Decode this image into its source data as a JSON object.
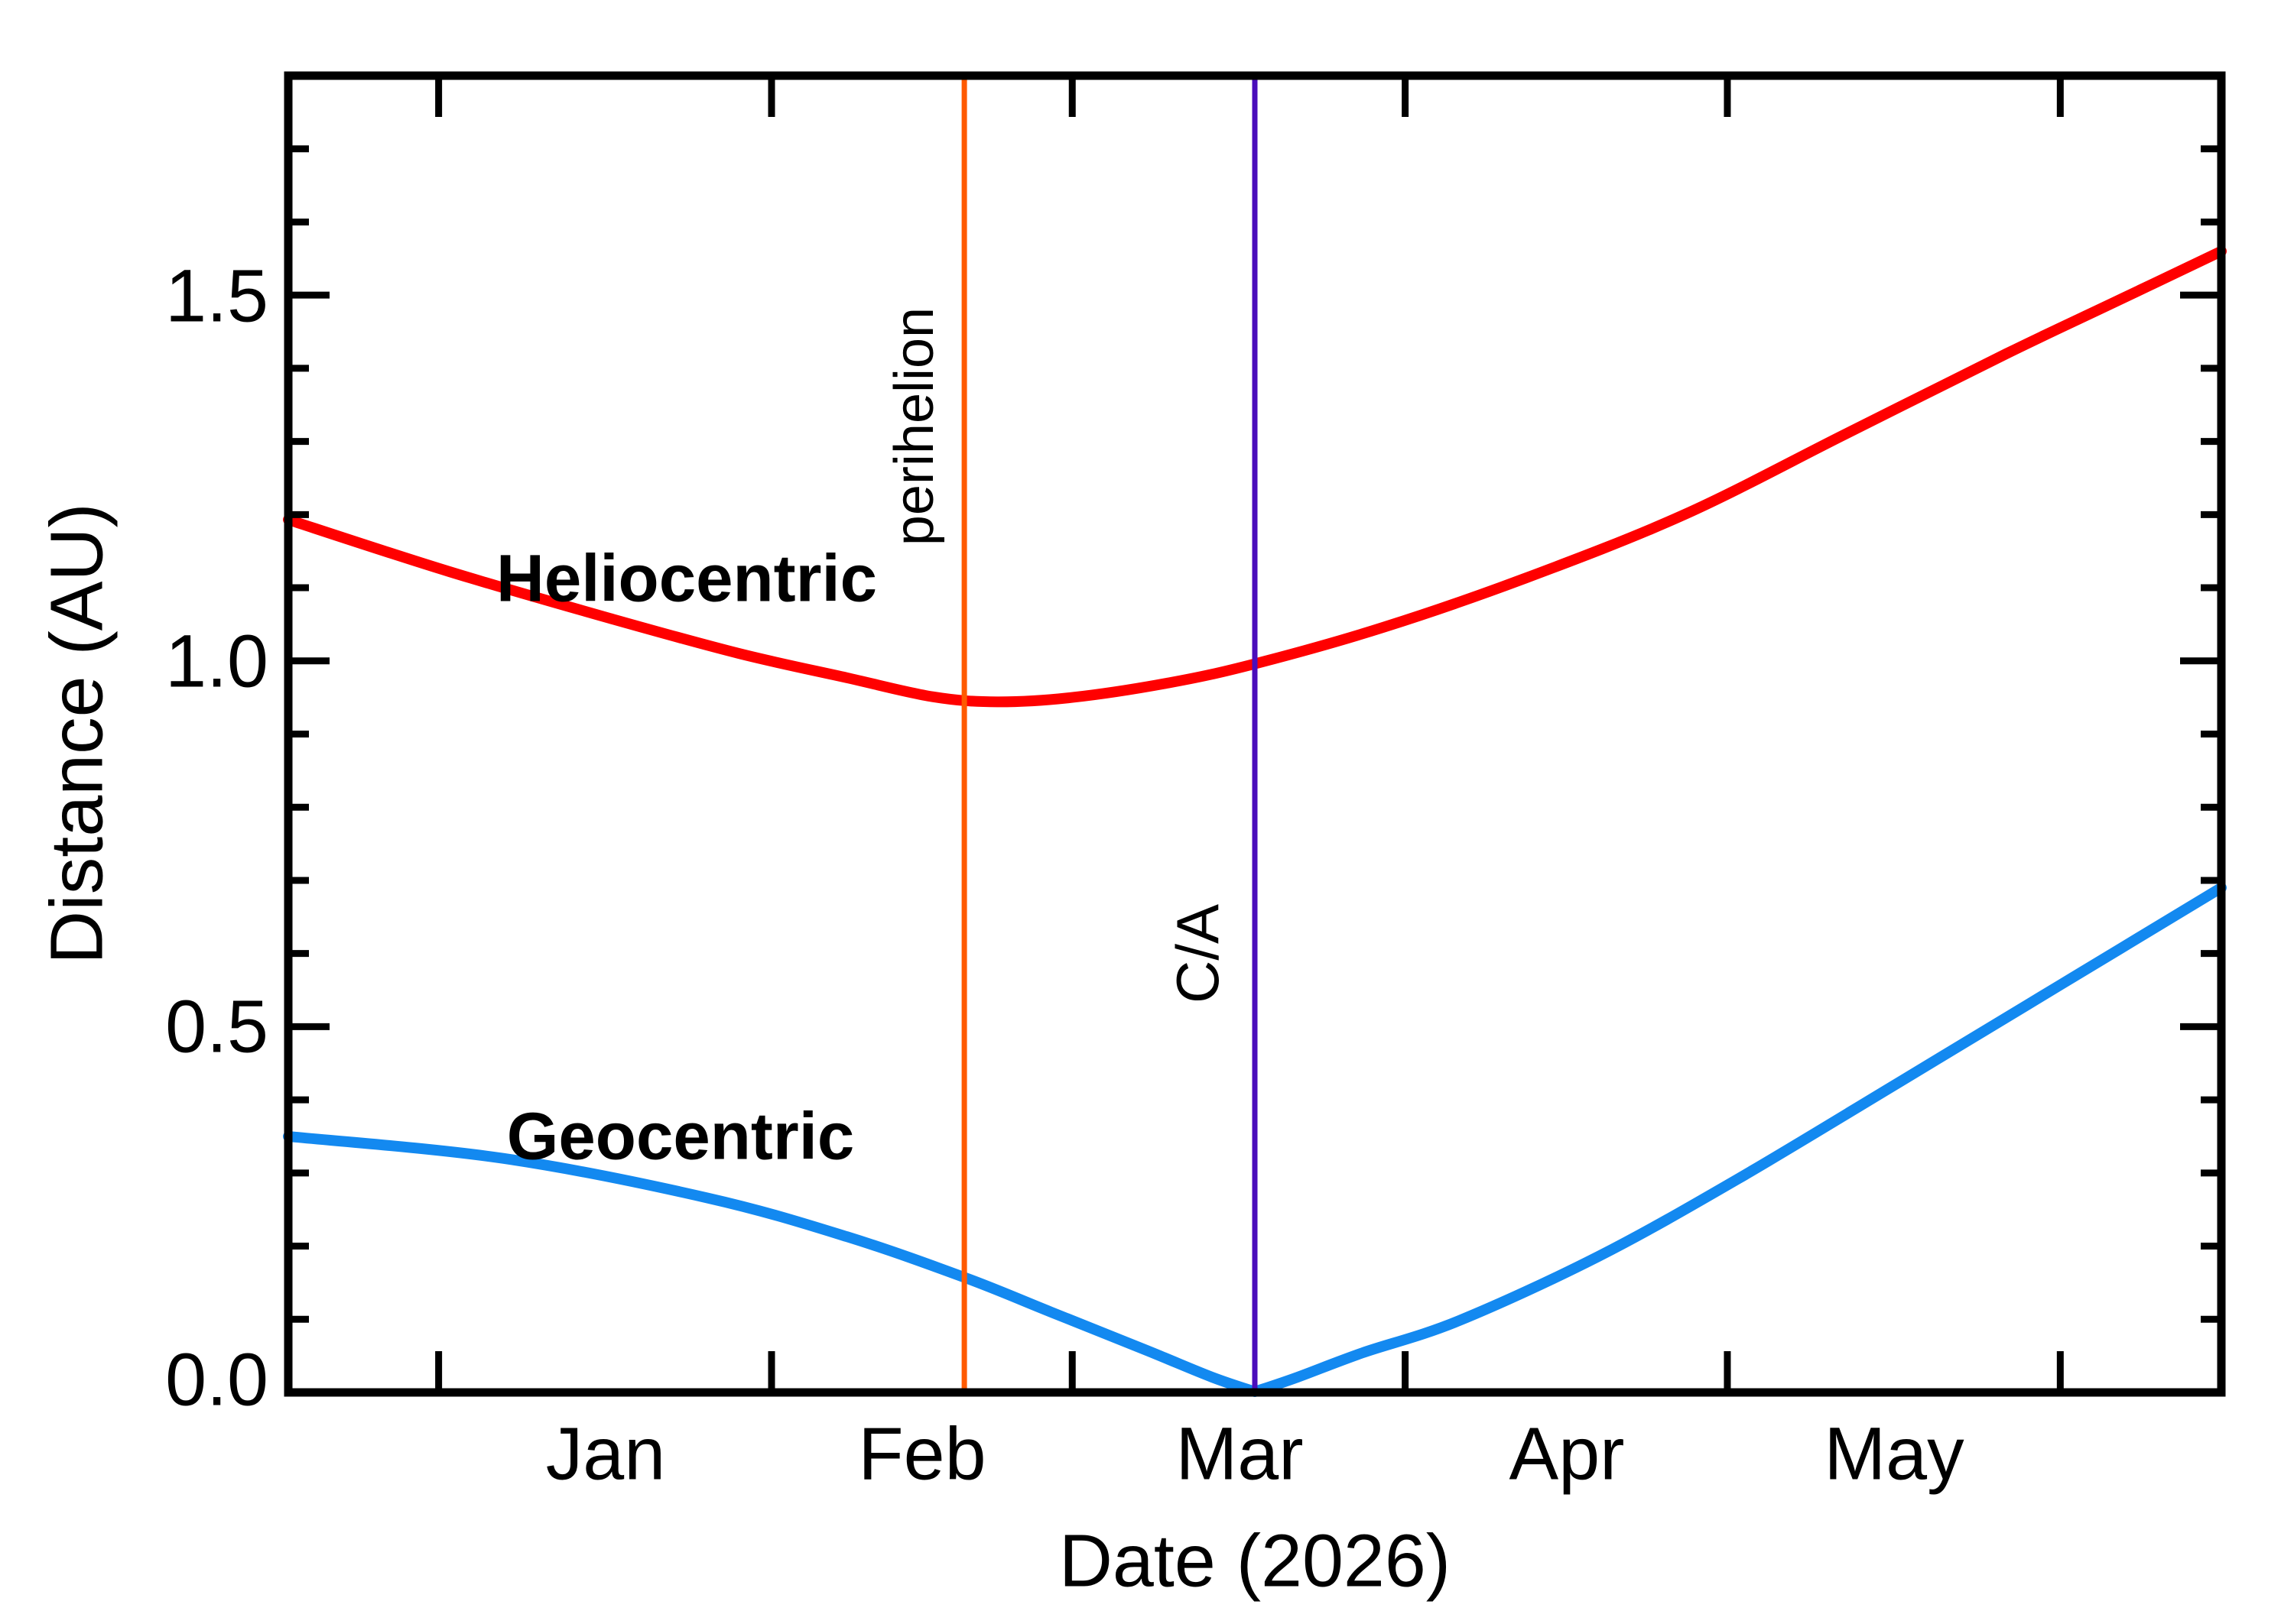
{
  "labels": {
    "xlabel": "Date (2026)",
    "ylabel": "Distance (AU)",
    "heliocentric": "Heliocentric",
    "geocentric": "Geocentric",
    "perihelion": "perihelion",
    "closest_approach": "C/A",
    "month_jan": "Jan",
    "month_feb": "Feb",
    "month_mar": "Mar",
    "month_apr": "Apr",
    "month_may": "May",
    "ytick_00": "0.0",
    "ytick_05": "0.5",
    "ytick_10": "1.0",
    "ytick_15": "1.5"
  },
  "colors": {
    "heliocentric": "#ff0000",
    "geocentric": "#1389f0",
    "perihelion_line": "#ff5a00",
    "ca_line": "#4a0dbb",
    "axis": "#000000",
    "background": "#ffffff"
  },
  "chart_data": {
    "type": "line",
    "title": "",
    "xlabel": "Date (2026)",
    "ylabel": "Distance (AU)",
    "ylim": [
      0,
      1.8
    ],
    "y_ticks_major": [
      0.0,
      0.5,
      1.0,
      1.5
    ],
    "y_tick_labels": [
      "0.0",
      "0.5",
      "1.0",
      "1.5"
    ],
    "y_minor_tick_step": 0.1,
    "grid": false,
    "legend_position": "inline curve labels",
    "x_axis": {
      "unit": "days relative to closest approach (C/A)",
      "range_days": [
        -90,
        90
      ],
      "month_tick_days": [
        -76,
        -45,
        -17,
        14,
        44,
        75
      ],
      "month_label_days": [
        -60.5,
        -31,
        -1.5,
        29,
        59.5
      ],
      "month_labels": [
        "Jan",
        "Feb",
        "Mar",
        "Apr",
        "May"
      ],
      "year": "2026"
    },
    "vlines": [
      {
        "label": "perihelion",
        "day": -27.05,
        "color": "#ff5a00"
      },
      {
        "label": "C/A",
        "day": 0,
        "color": "#4a0dbb"
      }
    ],
    "series": [
      {
        "name": "Heliocentric",
        "color": "#ff0000",
        "unit_x": "days from C/A",
        "unit_y": "AU",
        "segments": [
          [
            [
              -90,
              1.193
            ],
            [
              -75,
              1.122
            ],
            [
              -60,
              1.058
            ],
            [
              -48,
              1.01
            ],
            [
              -38,
              0.977
            ],
            [
              -30,
              0.951
            ],
            [
              -24,
              0.944
            ],
            [
              -17,
              0.95
            ],
            [
              -8,
              0.97
            ],
            [
              0,
              0.996
            ],
            [
              12,
              1.046
            ],
            [
              25,
              1.112
            ],
            [
              40,
              1.2
            ],
            [
              55,
              1.31
            ],
            [
              70,
              1.42
            ],
            [
              80,
              1.49
            ],
            [
              90,
              1.56
            ]
          ]
        ]
      },
      {
        "name": "Geocentric",
        "color": "#1389f0",
        "unit_x": "days from C/A",
        "unit_y": "AU",
        "segments": [
          [
            [
              -90,
              0.35
            ],
            [
              -70,
              0.32
            ],
            [
              -51,
              0.266
            ],
            [
              -38,
              0.213
            ],
            [
              -27,
              0.157
            ],
            [
              -19,
              0.11
            ],
            [
              -10,
              0.057
            ],
            [
              -4,
              0.021
            ],
            [
              0,
              0.001
            ]
          ],
          [
            [
              0,
              0.001
            ],
            [
              4,
              0.021
            ],
            [
              10,
              0.054
            ],
            [
              19,
              0.098
            ],
            [
              32,
              0.186
            ],
            [
              45,
              0.292
            ],
            [
              60,
              0.424
            ],
            [
              75,
              0.557
            ],
            [
              90,
              0.69
            ]
          ]
        ]
      }
    ]
  },
  "geometry_note": "x range is C/A minus 90 days (2025-12-18) to C/A plus 90 days (2026-06-16); perihelion ~2026-02-19, C/A ~2026-03-18"
}
